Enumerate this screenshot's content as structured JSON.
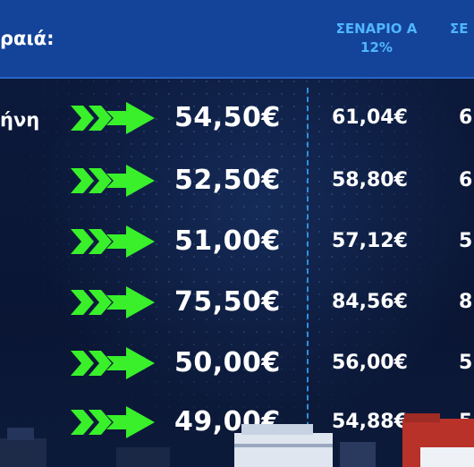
{
  "header": {
    "label": "ραιά:",
    "scenario_a_title": "ΣΕΝΑΡΙΟ Α",
    "scenario_a_sub": "12%",
    "scenario_b_title": "ΣΕ"
  },
  "rows": [
    {
      "label": "ήνη",
      "price": "54,50€",
      "scenario_a": "61,04€",
      "scenario_b": "6"
    },
    {
      "label": "",
      "price": "52,50€",
      "scenario_a": "58,80€",
      "scenario_b": "6"
    },
    {
      "label": "",
      "price": "51,00€",
      "scenario_a": "57,12€",
      "scenario_b": "5"
    },
    {
      "label": "",
      "price": "75,50€",
      "scenario_a": "84,56€",
      "scenario_b": "8"
    },
    {
      "label": "",
      "price": "50,00€",
      "scenario_a": "56,00€",
      "scenario_b": "5"
    },
    {
      "label": "",
      "price": "49,00€",
      "scenario_a": "54,88€",
      "scenario_b": "5"
    }
  ],
  "colors": {
    "header_bg": "#14449a",
    "scenario_title": "#4fb6ff",
    "arrow": "#39f02a",
    "background": "#0b1838",
    "divider": "#2f8fe0"
  },
  "icons": {
    "arrow": "double-chevron-arrow-icon"
  }
}
